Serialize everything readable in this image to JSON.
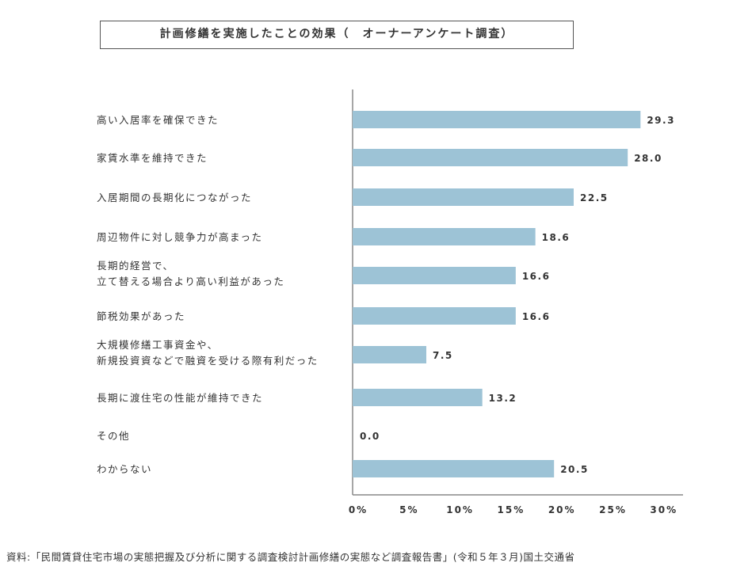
{
  "chart_data": {
    "type": "bar",
    "orientation": "horizontal",
    "title": "計画修繕を実施したことの効果（　オーナーアンケート調査）",
    "categories": [
      [
        "高い入居率を確保できた"
      ],
      [
        "家賃水準を維持できた"
      ],
      [
        "入居期間の長期化につながった"
      ],
      [
        "周辺物件に対し競争力が高まった"
      ],
      [
        "長期的経営で、",
        "立て替える場合より高い利益があった"
      ],
      [
        "節税効果があった"
      ],
      [
        "大規模修繕工事資金や、",
        "新規投資資などで融資を受ける際有利だった"
      ],
      [
        "長期に渡住宅の性能が維持できた"
      ],
      [
        "その他"
      ],
      [
        "わからない"
      ]
    ],
    "values": [
      29.3,
      28.0,
      22.5,
      18.6,
      16.6,
      16.6,
      7.5,
      13.2,
      0.0,
      20.5
    ],
    "value_labels": [
      "29.3",
      "28.0",
      "22.5",
      "18.6",
      "16.6",
      "16.6",
      "7.5",
      "13.2",
      "0.0",
      "20.5"
    ],
    "xlim": [
      0,
      30
    ],
    "xticks": [
      "0%",
      "5%",
      "10%",
      "15%",
      "20%",
      "25%",
      "30%"
    ],
    "bar_color": "#9dc3d6",
    "source": "資料:「民間賃貸住宅市場の実態把握及び分析に関する調査検討計画修繕の実態など調査報告書」(令和５年３月)国土交通省"
  }
}
